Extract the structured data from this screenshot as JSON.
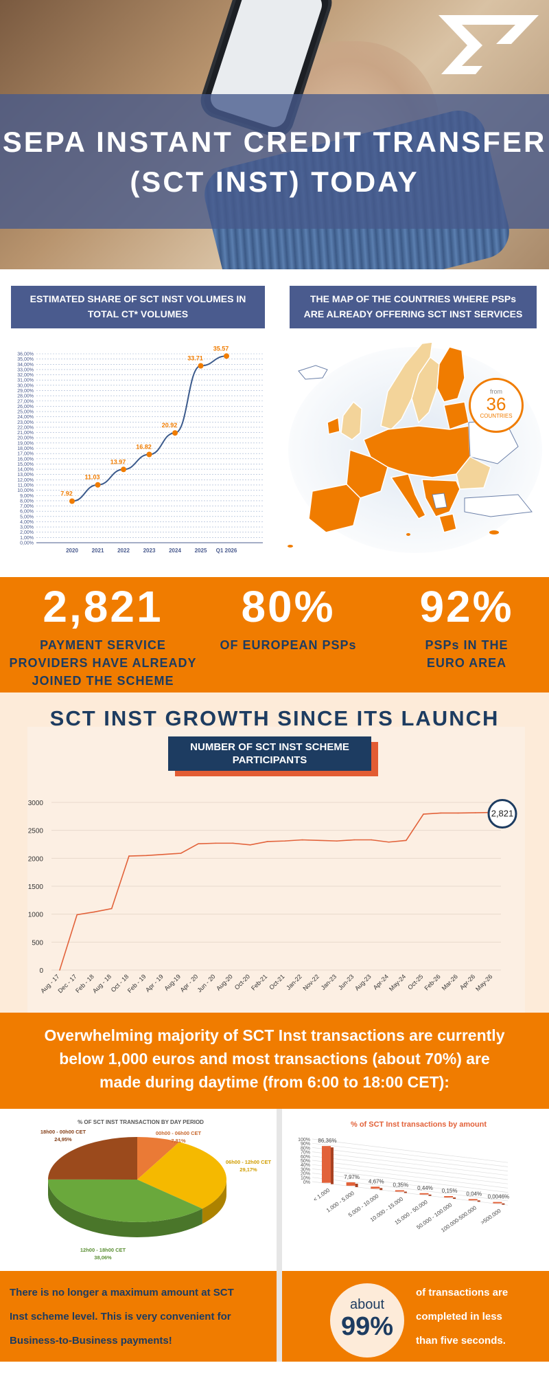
{
  "hero": {
    "title_line1": "SEPA INSTANT CREDIT TRANSFER",
    "title_line2": "(SCT INST) TODAY"
  },
  "panels": {
    "share_title_line1": "ESTIMATED SHARE OF SCT INST VOLUMES IN",
    "share_title_line2": "TOTAL CT* VOLUMES",
    "map_title_line1": "THE MAP OF THE COUNTRIES WHERE PSPs",
    "map_title_line2": "ARE ALREADY OFFERING SCT INST SERVICES"
  },
  "map": {
    "from_label": "from",
    "count": "36",
    "countries_label": "COUNTRIES"
  },
  "stats": [
    {
      "value": "2,821",
      "line1": "PAYMENT SERVICE",
      "line2": "PROVIDERS HAVE ALREADY",
      "line3": "JOINED THE SCHEME"
    },
    {
      "value": "80%",
      "line1": "OF EUROPEAN PSPs"
    },
    {
      "value": "92%",
      "line1": "PSPs IN THE",
      "line2": "EURO AREA"
    }
  ],
  "growth": {
    "heading": "SCT INST GROWTH SINCE ITS LAUNCH",
    "subtitle_line1": "NUMBER OF SCT INST SCHEME",
    "subtitle_line2": "PARTICIPANTS",
    "end_badge": "2,821"
  },
  "note": {
    "line1": "Overwhelming majority of SCT Inst transactions are currently",
    "line2": "below 1,000 euros and most transactions (about 70%) are",
    "line3": "made during daytime (from 6:00 to 18:00 CET):"
  },
  "footer": {
    "left_line1": "There is no longer a maximum amount at SCT",
    "left_line2": "Inst scheme level. This is very convenient for",
    "left_line3": "Business-to-Business payments!",
    "about": "about",
    "percent": "99%",
    "right_line1": "of transactions are",
    "right_line2": "completed in less",
    "right_line3": "than five seconds."
  },
  "colors": {
    "orange": "#f07c00",
    "navy": "#1d3c61",
    "slate": "#4a5b8e",
    "cream": "#fdebd9",
    "line_blue": "#3b5a8c",
    "line_red": "#e2623a"
  },
  "chart_data": [
    {
      "type": "line",
      "x": [
        "2020",
        "2021",
        "2022",
        "2023",
        "2024",
        "2025",
        "Q1 2026"
      ],
      "points": [
        {
          "x": "2020",
          "y": 7.92,
          "label": "7.92"
        },
        {
          "x": "2021",
          "y": 11.03,
          "label": "11.03"
        },
        {
          "x": "2022",
          "y": 13.97,
          "label": "13.97"
        },
        {
          "x": "2023",
          "y": 16.82,
          "label": "16.82"
        },
        {
          "x": "2024",
          "y": 20.92,
          "label": "20.92"
        },
        {
          "x": "2025",
          "y": 33.71,
          "label": "33.71"
        },
        {
          "x": "Q1 2026",
          "y": 35.57,
          "label": "35.57"
        }
      ],
      "ylim": [
        0,
        36
      ],
      "ytick_step": 1,
      "ytick_format": "0,00%",
      "grid": true
    },
    {
      "type": "line",
      "title": "NUMBER OF SCT INST SCHEME PARTICIPANTS",
      "categories": [
        "Aug - 17",
        "Dec - 17",
        "Feb - 18",
        "Aug - 18",
        "Oct - 18",
        "Feb - 19",
        "Apr - 19",
        "Aug-19",
        "Apr - 20",
        "Jun - 20",
        "Aug-20",
        "Oct-20",
        "Feb-21",
        "Oct-21",
        "Jan-22",
        "Nov-22",
        "Jan-23",
        "Jun-23",
        "Aug-23",
        "Apr-24",
        "May-24",
        "Oct-25",
        "Feb-26",
        "Mar-26",
        "Apr-26",
        "May-26"
      ],
      "values": [
        0,
        990,
        1040,
        1100,
        2040,
        2050,
        2070,
        2090,
        2260,
        2270,
        2270,
        2240,
        2300,
        2310,
        2330,
        2320,
        2310,
        2330,
        2330,
        2290,
        2320,
        2790,
        2810,
        2810,
        2815,
        2821
      ],
      "yticks": [
        0,
        500,
        1000,
        1500,
        2000,
        2500,
        3000
      ],
      "ylim": [
        0,
        3000
      ],
      "grid": true
    },
    {
      "type": "pie",
      "title": "% OF SCT INST TRANSACTION BY DAY PERIOD",
      "slices": [
        {
          "label": "00h00 - 06h00 CET",
          "value": 7.81,
          "display": "7,81%",
          "color": "#ea7a36"
        },
        {
          "label": "06h00 - 12h00 CET",
          "value": 29.17,
          "display": "29,17%",
          "color": "#f5b900"
        },
        {
          "label": "12h00 - 18h00 CET",
          "value": 38.06,
          "display": "38,06%",
          "color": "#6aa83c"
        },
        {
          "label": "18h00 - 00h00 CET",
          "value": 24.95,
          "display": "24,95%",
          "color": "#9b4a1c"
        }
      ]
    },
    {
      "type": "bar",
      "title": "% of SCT Inst transactions by amount",
      "categories": [
        "< 1.000",
        "1.000 - 5.000",
        "5.000 - 10.000",
        "10.000 - 15.000",
        "15.000 - 50.000",
        "50.000 - 100.000",
        "100.000-500.000",
        ">500.000"
      ],
      "values": [
        86.36,
        7.97,
        4.67,
        0.35,
        0.44,
        0.15,
        0.04,
        0.0046
      ],
      "labels": [
        "86,36%",
        "7,97%",
        "4,67%",
        "0,35%",
        "0,44%",
        "0,15%",
        "0,04%",
        "0,0046%"
      ],
      "yticks": [
        "0%",
        "10%",
        "20%",
        "30%",
        "40%",
        "50%",
        "60%",
        "70%",
        "80%",
        "90%",
        "100%"
      ],
      "ylim": [
        0,
        100
      ]
    }
  ]
}
